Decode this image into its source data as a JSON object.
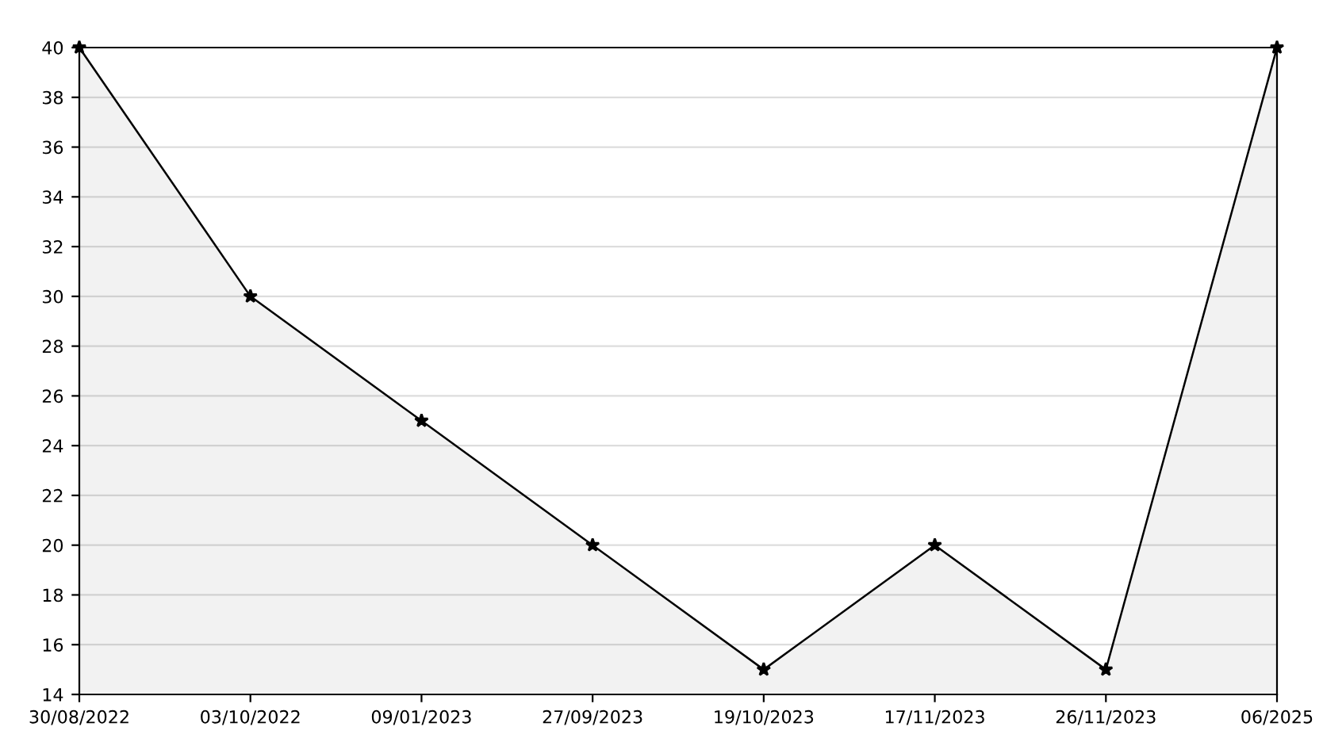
{
  "chart_data": {
    "type": "area",
    "categories": [
      "30/08/2022",
      "03/10/2022",
      "09/01/2023",
      "27/09/2023",
      "19/10/2023",
      "17/11/2023",
      "26/11/2023",
      "06/2025"
    ],
    "series": [
      {
        "color": "#000000",
        "values": [
          40,
          30,
          25,
          20,
          15,
          20,
          15,
          40
        ]
      }
    ],
    "ylim": [
      14,
      40
    ],
    "yticks": [
      14,
      16,
      18,
      20,
      22,
      24,
      26,
      28,
      30,
      32,
      34,
      36,
      38,
      40
    ],
    "grid": "y",
    "marker": "star",
    "line_style": "solid"
  }
}
